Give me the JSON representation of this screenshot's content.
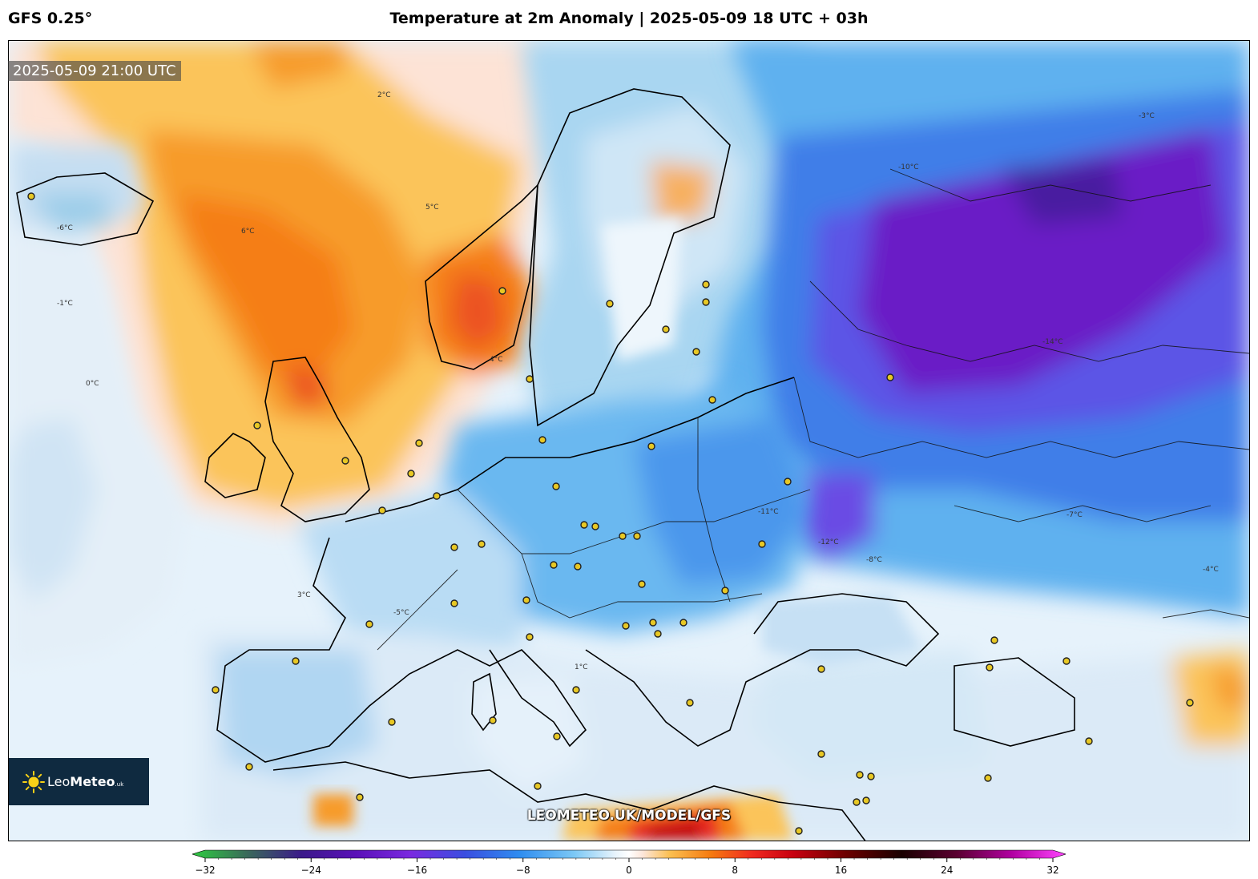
{
  "header": {
    "model": "GFS 0.25°",
    "title": "Temperature at 2m Anomaly | 2025-05-09 18 UTC + 03h"
  },
  "map": {
    "valid_time": "2025-05-09 21:00 UTC",
    "watermark": "LEOMETEO.UK/MODEL/GFS",
    "contour_labels": [
      "-6°C",
      "2°C",
      "5°C",
      "6°C",
      "4°C",
      "-1°C",
      "0°C",
      "-10°C",
      "-14°C",
      "-8°C",
      "-11°C",
      "-12°C",
      "-5°C",
      "1°C",
      "3°C",
      "-4°C",
      "-7°C",
      "-3°C"
    ]
  },
  "logo": {
    "name_light": "Leo",
    "name_bold": "Meteo",
    "suffix": ".uk",
    "icon": "sun-icon"
  },
  "colorbar": {
    "min": -32,
    "max": 32,
    "tick_values": [
      -32,
      -24,
      -16,
      -8,
      0,
      8,
      16,
      24,
      32
    ],
    "tick_labels": [
      "−32",
      "−24",
      "−16",
      "−8",
      "0",
      "8",
      "16",
      "24",
      "32"
    ],
    "stops": [
      {
        "value": -32,
        "color": "#2ecc40"
      },
      {
        "value": -28,
        "color": "#3a6a5a"
      },
      {
        "value": -24,
        "color": "#3b1a8a"
      },
      {
        "value": -20,
        "color": "#5a10b8"
      },
      {
        "value": -16,
        "color": "#7a2ae0"
      },
      {
        "value": -12,
        "color": "#3a4ee0"
      },
      {
        "value": -8,
        "color": "#2f8df0"
      },
      {
        "value": -4,
        "color": "#7cc8f5"
      },
      {
        "value": -1,
        "color": "#e8f4fc"
      },
      {
        "value": 0,
        "color": "#ffffff"
      },
      {
        "value": 1,
        "color": "#fde6da"
      },
      {
        "value": 3,
        "color": "#fbbf50"
      },
      {
        "value": 6,
        "color": "#f57a10"
      },
      {
        "value": 9,
        "color": "#f02a20"
      },
      {
        "value": 12,
        "color": "#c80010"
      },
      {
        "value": 16,
        "color": "#6a0000"
      },
      {
        "value": 20,
        "color": "#1a0000"
      },
      {
        "value": 24,
        "color": "#5a0030"
      },
      {
        "value": 28,
        "color": "#b000a0"
      },
      {
        "value": 32,
        "color": "#ff44ff"
      }
    ]
  },
  "cities": [
    [
      38,
      244
    ],
    [
      320,
      530
    ],
    [
      430,
      574
    ],
    [
      512,
      590
    ],
    [
      476,
      636
    ],
    [
      544,
      618
    ],
    [
      522,
      552
    ],
    [
      626,
      362
    ],
    [
      660,
      472
    ],
    [
      676,
      548
    ],
    [
      760,
      378
    ],
    [
      830,
      410
    ],
    [
      868,
      438
    ],
    [
      880,
      354
    ],
    [
      880,
      376
    ],
    [
      888,
      498
    ],
    [
      812,
      556
    ],
    [
      1110,
      470
    ],
    [
      693,
      606
    ],
    [
      728,
      654
    ],
    [
      742,
      656
    ],
    [
      776,
      668
    ],
    [
      794,
      668
    ],
    [
      600,
      678
    ],
    [
      566,
      682
    ],
    [
      690,
      704
    ],
    [
      720,
      706
    ],
    [
      800,
      728
    ],
    [
      904,
      736
    ],
    [
      950,
      678
    ],
    [
      982,
      600
    ],
    [
      656,
      748
    ],
    [
      566,
      752
    ],
    [
      460,
      778
    ],
    [
      780,
      780
    ],
    [
      814,
      776
    ],
    [
      820,
      790
    ],
    [
      852,
      776
    ],
    [
      660,
      794
    ],
    [
      368,
      824
    ],
    [
      268,
      860
    ],
    [
      718,
      860
    ],
    [
      860,
      876
    ],
    [
      488,
      900
    ],
    [
      614,
      898
    ],
    [
      694,
      918
    ],
    [
      310,
      956
    ],
    [
      448,
      994
    ],
    [
      670,
      980
    ],
    [
      996,
      1036
    ],
    [
      1024,
      834
    ],
    [
      1024,
      940
    ],
    [
      1072,
      966
    ],
    [
      1086,
      968
    ],
    [
      1068,
      1000
    ],
    [
      1080,
      998
    ],
    [
      1232,
      970
    ],
    [
      1240,
      798
    ],
    [
      1234,
      832
    ],
    [
      1330,
      824
    ],
    [
      1358,
      924
    ],
    [
      1484,
      876
    ]
  ]
}
